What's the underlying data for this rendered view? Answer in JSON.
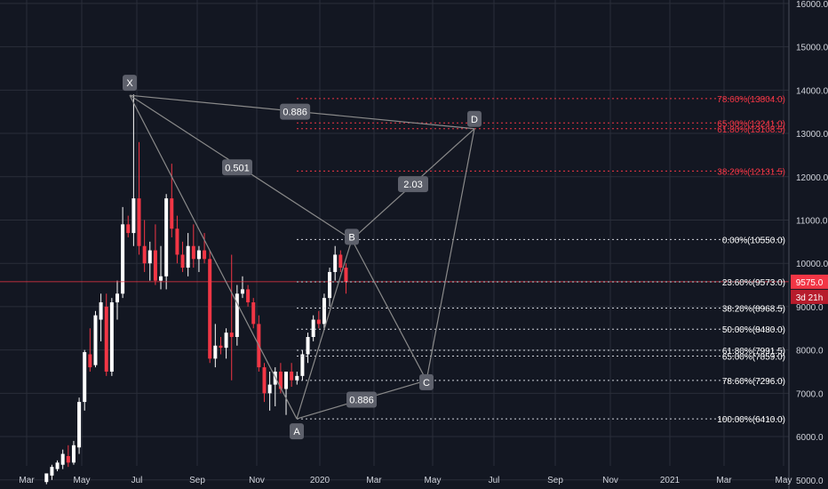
{
  "chart_data": {
    "type": "candlestick",
    "x_axis": {
      "tick_labels": [
        "Mar",
        "May",
        "Jul",
        "Sep",
        "Nov",
        "2020",
        "Mar",
        "May",
        "Jul",
        "Sep",
        "Nov",
        "2021",
        "Mar",
        "May"
      ]
    },
    "y_axis": {
      "tick_labels": [
        "16000.0",
        "15000.0",
        "14000.0",
        "13000.0",
        "12000.0",
        "11000.0",
        "10000.0",
        "9000.0",
        "8000.0",
        "7000.0",
        "6000.0",
        "5000.0"
      ],
      "range": [
        5000,
        16000
      ]
    },
    "price_marker": {
      "value": "9575.0",
      "countdown": "3d 21h",
      "color": "#f23645"
    },
    "candles": [
      {
        "o": 4950,
        "h": 5150,
        "l": 4900,
        "c": 5150
      },
      {
        "o": 5100,
        "h": 5350,
        "l": 5000,
        "c": 5300
      },
      {
        "o": 5250,
        "h": 5450,
        "l": 5200,
        "c": 5400
      },
      {
        "o": 5350,
        "h": 5700,
        "l": 5250,
        "c": 5600
      },
      {
        "o": 5550,
        "h": 5800,
        "l": 5300,
        "c": 5400
      },
      {
        "o": 5400,
        "h": 5900,
        "l": 5350,
        "c": 5800
      },
      {
        "o": 5750,
        "h": 6900,
        "l": 5600,
        "c": 6800
      },
      {
        "o": 6800,
        "h": 8000,
        "l": 6600,
        "c": 7950
      },
      {
        "o": 7900,
        "h": 8500,
        "l": 7500,
        "c": 7600
      },
      {
        "o": 7650,
        "h": 8900,
        "l": 7600,
        "c": 8800
      },
      {
        "o": 8700,
        "h": 9300,
        "l": 8200,
        "c": 9100
      },
      {
        "o": 9000,
        "h": 9300,
        "l": 7400,
        "c": 7500
      },
      {
        "o": 7500,
        "h": 9200,
        "l": 7400,
        "c": 9100
      },
      {
        "o": 9100,
        "h": 9600,
        "l": 8700,
        "c": 9300
      },
      {
        "o": 9300,
        "h": 11300,
        "l": 9200,
        "c": 10900
      },
      {
        "o": 10900,
        "h": 11100,
        "l": 10600,
        "c": 10700
      },
      {
        "o": 10700,
        "h": 13900,
        "l": 10400,
        "c": 11500
      },
      {
        "o": 11500,
        "h": 12800,
        "l": 10200,
        "c": 10400
      },
      {
        "o": 10400,
        "h": 11000,
        "l": 9800,
        "c": 10000
      },
      {
        "o": 10000,
        "h": 10500,
        "l": 9600,
        "c": 10300
      },
      {
        "o": 10300,
        "h": 10900,
        "l": 9500,
        "c": 9600
      },
      {
        "o": 9600,
        "h": 10400,
        "l": 9400,
        "c": 9700
      },
      {
        "o": 9700,
        "h": 11600,
        "l": 9400,
        "c": 11500
      },
      {
        "o": 11500,
        "h": 12300,
        "l": 10600,
        "c": 10800
      },
      {
        "o": 10800,
        "h": 11100,
        "l": 10000,
        "c": 10200
      },
      {
        "o": 10200,
        "h": 10500,
        "l": 9800,
        "c": 9900
      },
      {
        "o": 9900,
        "h": 10700,
        "l": 9700,
        "c": 10400
      },
      {
        "o": 10400,
        "h": 10900,
        "l": 9900,
        "c": 10100
      },
      {
        "o": 10100,
        "h": 10400,
        "l": 9800,
        "c": 10300
      },
      {
        "o": 10300,
        "h": 10700,
        "l": 10000,
        "c": 10100
      },
      {
        "o": 10100,
        "h": 10300,
        "l": 7700,
        "c": 7800
      },
      {
        "o": 7800,
        "h": 8600,
        "l": 7600,
        "c": 8100
      },
      {
        "o": 8100,
        "h": 8300,
        "l": 7900,
        "c": 8050
      },
      {
        "o": 8050,
        "h": 8500,
        "l": 7800,
        "c": 8400
      },
      {
        "o": 8400,
        "h": 10200,
        "l": 7300,
        "c": 8300
      },
      {
        "o": 8300,
        "h": 9500,
        "l": 8100,
        "c": 9300
      },
      {
        "o": 9300,
        "h": 9700,
        "l": 9200,
        "c": 9400
      },
      {
        "o": 9400,
        "h": 9500,
        "l": 9000,
        "c": 9100
      },
      {
        "o": 9100,
        "h": 9200,
        "l": 8500,
        "c": 8600
      },
      {
        "o": 8600,
        "h": 8800,
        "l": 7500,
        "c": 7600
      },
      {
        "o": 7600,
        "h": 7700,
        "l": 6800,
        "c": 7000
      },
      {
        "o": 7000,
        "h": 7500,
        "l": 6600,
        "c": 7200
      },
      {
        "o": 7200,
        "h": 7600,
        "l": 6700,
        "c": 7500
      },
      {
        "o": 7500,
        "h": 7700,
        "l": 7000,
        "c": 7100
      },
      {
        "o": 7100,
        "h": 7500,
        "l": 6500,
        "c": 7500
      },
      {
        "o": 7500,
        "h": 7700,
        "l": 7150,
        "c": 7300
      },
      {
        "o": 7300,
        "h": 7500,
        "l": 7200,
        "c": 7400
      },
      {
        "o": 7400,
        "h": 8000,
        "l": 7300,
        "c": 7900
      },
      {
        "o": 7900,
        "h": 8400,
        "l": 7700,
        "c": 8300
      },
      {
        "o": 8300,
        "h": 8800,
        "l": 8200,
        "c": 8700
      },
      {
        "o": 8700,
        "h": 8900,
        "l": 8500,
        "c": 8600
      },
      {
        "o": 8600,
        "h": 9300,
        "l": 8500,
        "c": 9200
      },
      {
        "o": 9200,
        "h": 9900,
        "l": 9000,
        "c": 9800
      },
      {
        "o": 9800,
        "h": 10400,
        "l": 9600,
        "c": 10200
      },
      {
        "o": 10200,
        "h": 10300,
        "l": 9800,
        "c": 9900
      },
      {
        "o": 9900,
        "h": 10000,
        "l": 9300,
        "c": 9575
      }
    ],
    "xabcd_pattern": {
      "points": [
        {
          "label": "X",
          "value": 13880
        },
        {
          "label": "A",
          "value": 6410
        },
        {
          "label": "B",
          "value": 10550
        },
        {
          "label": "C",
          "value": 7296
        },
        {
          "label": "D",
          "value": 13108.5
        }
      ],
      "ratios": [
        "0.886",
        "0.501",
        "2.03",
        "0.886"
      ]
    },
    "fib_levels_white": [
      {
        "label": "0.00%(10550.0)",
        "value": 10550.0
      },
      {
        "label": "23.60%(9573.0)",
        "value": 9573.0
      },
      {
        "label": "38.20%(8968.5)",
        "value": 8968.5
      },
      {
        "label": "50.00%(8480.0)",
        "value": 8480.0
      },
      {
        "label": "61.80%(7991.5)",
        "value": 7991.5
      },
      {
        "label": "65.00%(7859.0)",
        "value": 7859.0
      },
      {
        "label": "78.60%(7296.0)",
        "value": 7296.0
      },
      {
        "label": "100.00%(6410.0)",
        "value": 6410.0
      }
    ],
    "fib_levels_red": [
      {
        "label": "78.60%(13804.0)",
        "value": 13804.0
      },
      {
        "label": "65.00%(13241.0)",
        "value": 13241.0
      },
      {
        "label": "61.80%(13108.5)",
        "value": 13108.5
      },
      {
        "label": "38.20%(12131.5)",
        "value": 12131.5
      }
    ],
    "colors": {
      "background": "#131722",
      "up": "#ffffff",
      "down": "#f23645",
      "pattern": "#8a8a8a",
      "label_box": "#5d606b",
      "grid": "#2a2e39",
      "axis_text": "#d1d4dc"
    }
  }
}
